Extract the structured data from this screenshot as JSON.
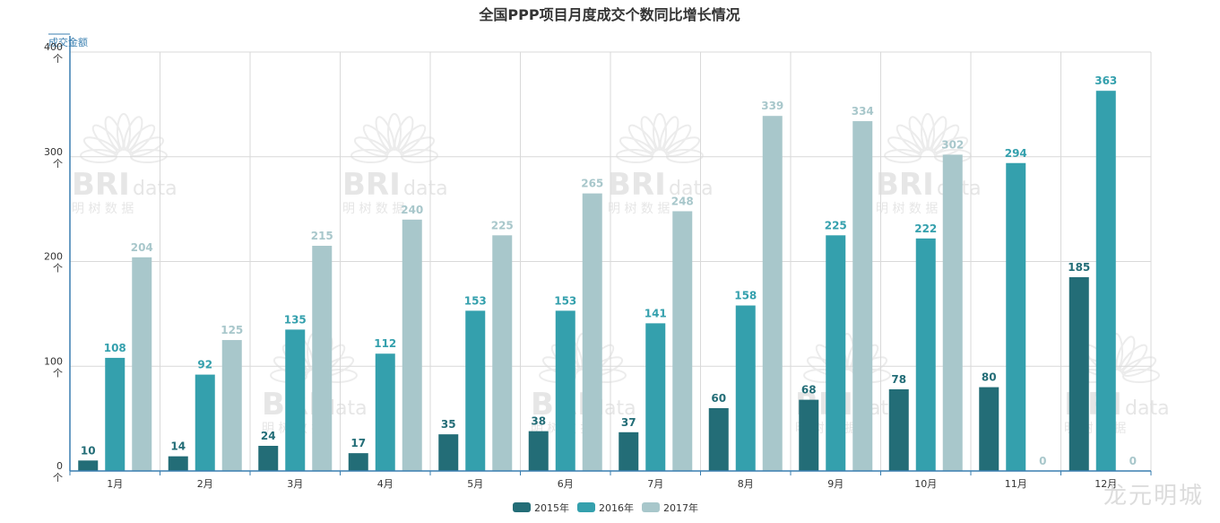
{
  "chart_data": {
    "type": "bar",
    "title": "全国PPP项目月度成交个数同比增长情况",
    "ylabel": "成交金额",
    "ylim": [
      0,
      400
    ],
    "yticks": [
      {
        "value": 0,
        "label": "0\n个"
      },
      {
        "value": 100,
        "label": "100\n个"
      },
      {
        "value": 200,
        "label": "200\n个"
      },
      {
        "value": 300,
        "label": "300\n个"
      },
      {
        "value": 400,
        "label": "400\n个"
      }
    ],
    "categories": [
      "1月",
      "2月",
      "3月",
      "4月",
      "5月",
      "6月",
      "7月",
      "8月",
      "9月",
      "10月",
      "11月",
      "12月"
    ],
    "series": [
      {
        "name": "2015年",
        "color": "#236d77",
        "values": [
          10,
          14,
          24,
          17,
          35,
          38,
          37,
          60,
          68,
          78,
          80,
          185
        ]
      },
      {
        "name": "2016年",
        "color": "#34a0ad",
        "values": [
          108,
          92,
          135,
          112,
          153,
          153,
          141,
          158,
          225,
          222,
          294,
          363
        ]
      },
      {
        "name": "2017年",
        "color": "#a8c7cb",
        "values": [
          204,
          125,
          215,
          240,
          225,
          265,
          248,
          339,
          334,
          302,
          0,
          0
        ]
      }
    ],
    "grid": true,
    "legend": "bottom-center"
  },
  "watermark": {
    "brand": "BRI",
    "suffix": "data",
    "chinese": "明 树 数 据"
  },
  "corner_mark": "龙元明城"
}
